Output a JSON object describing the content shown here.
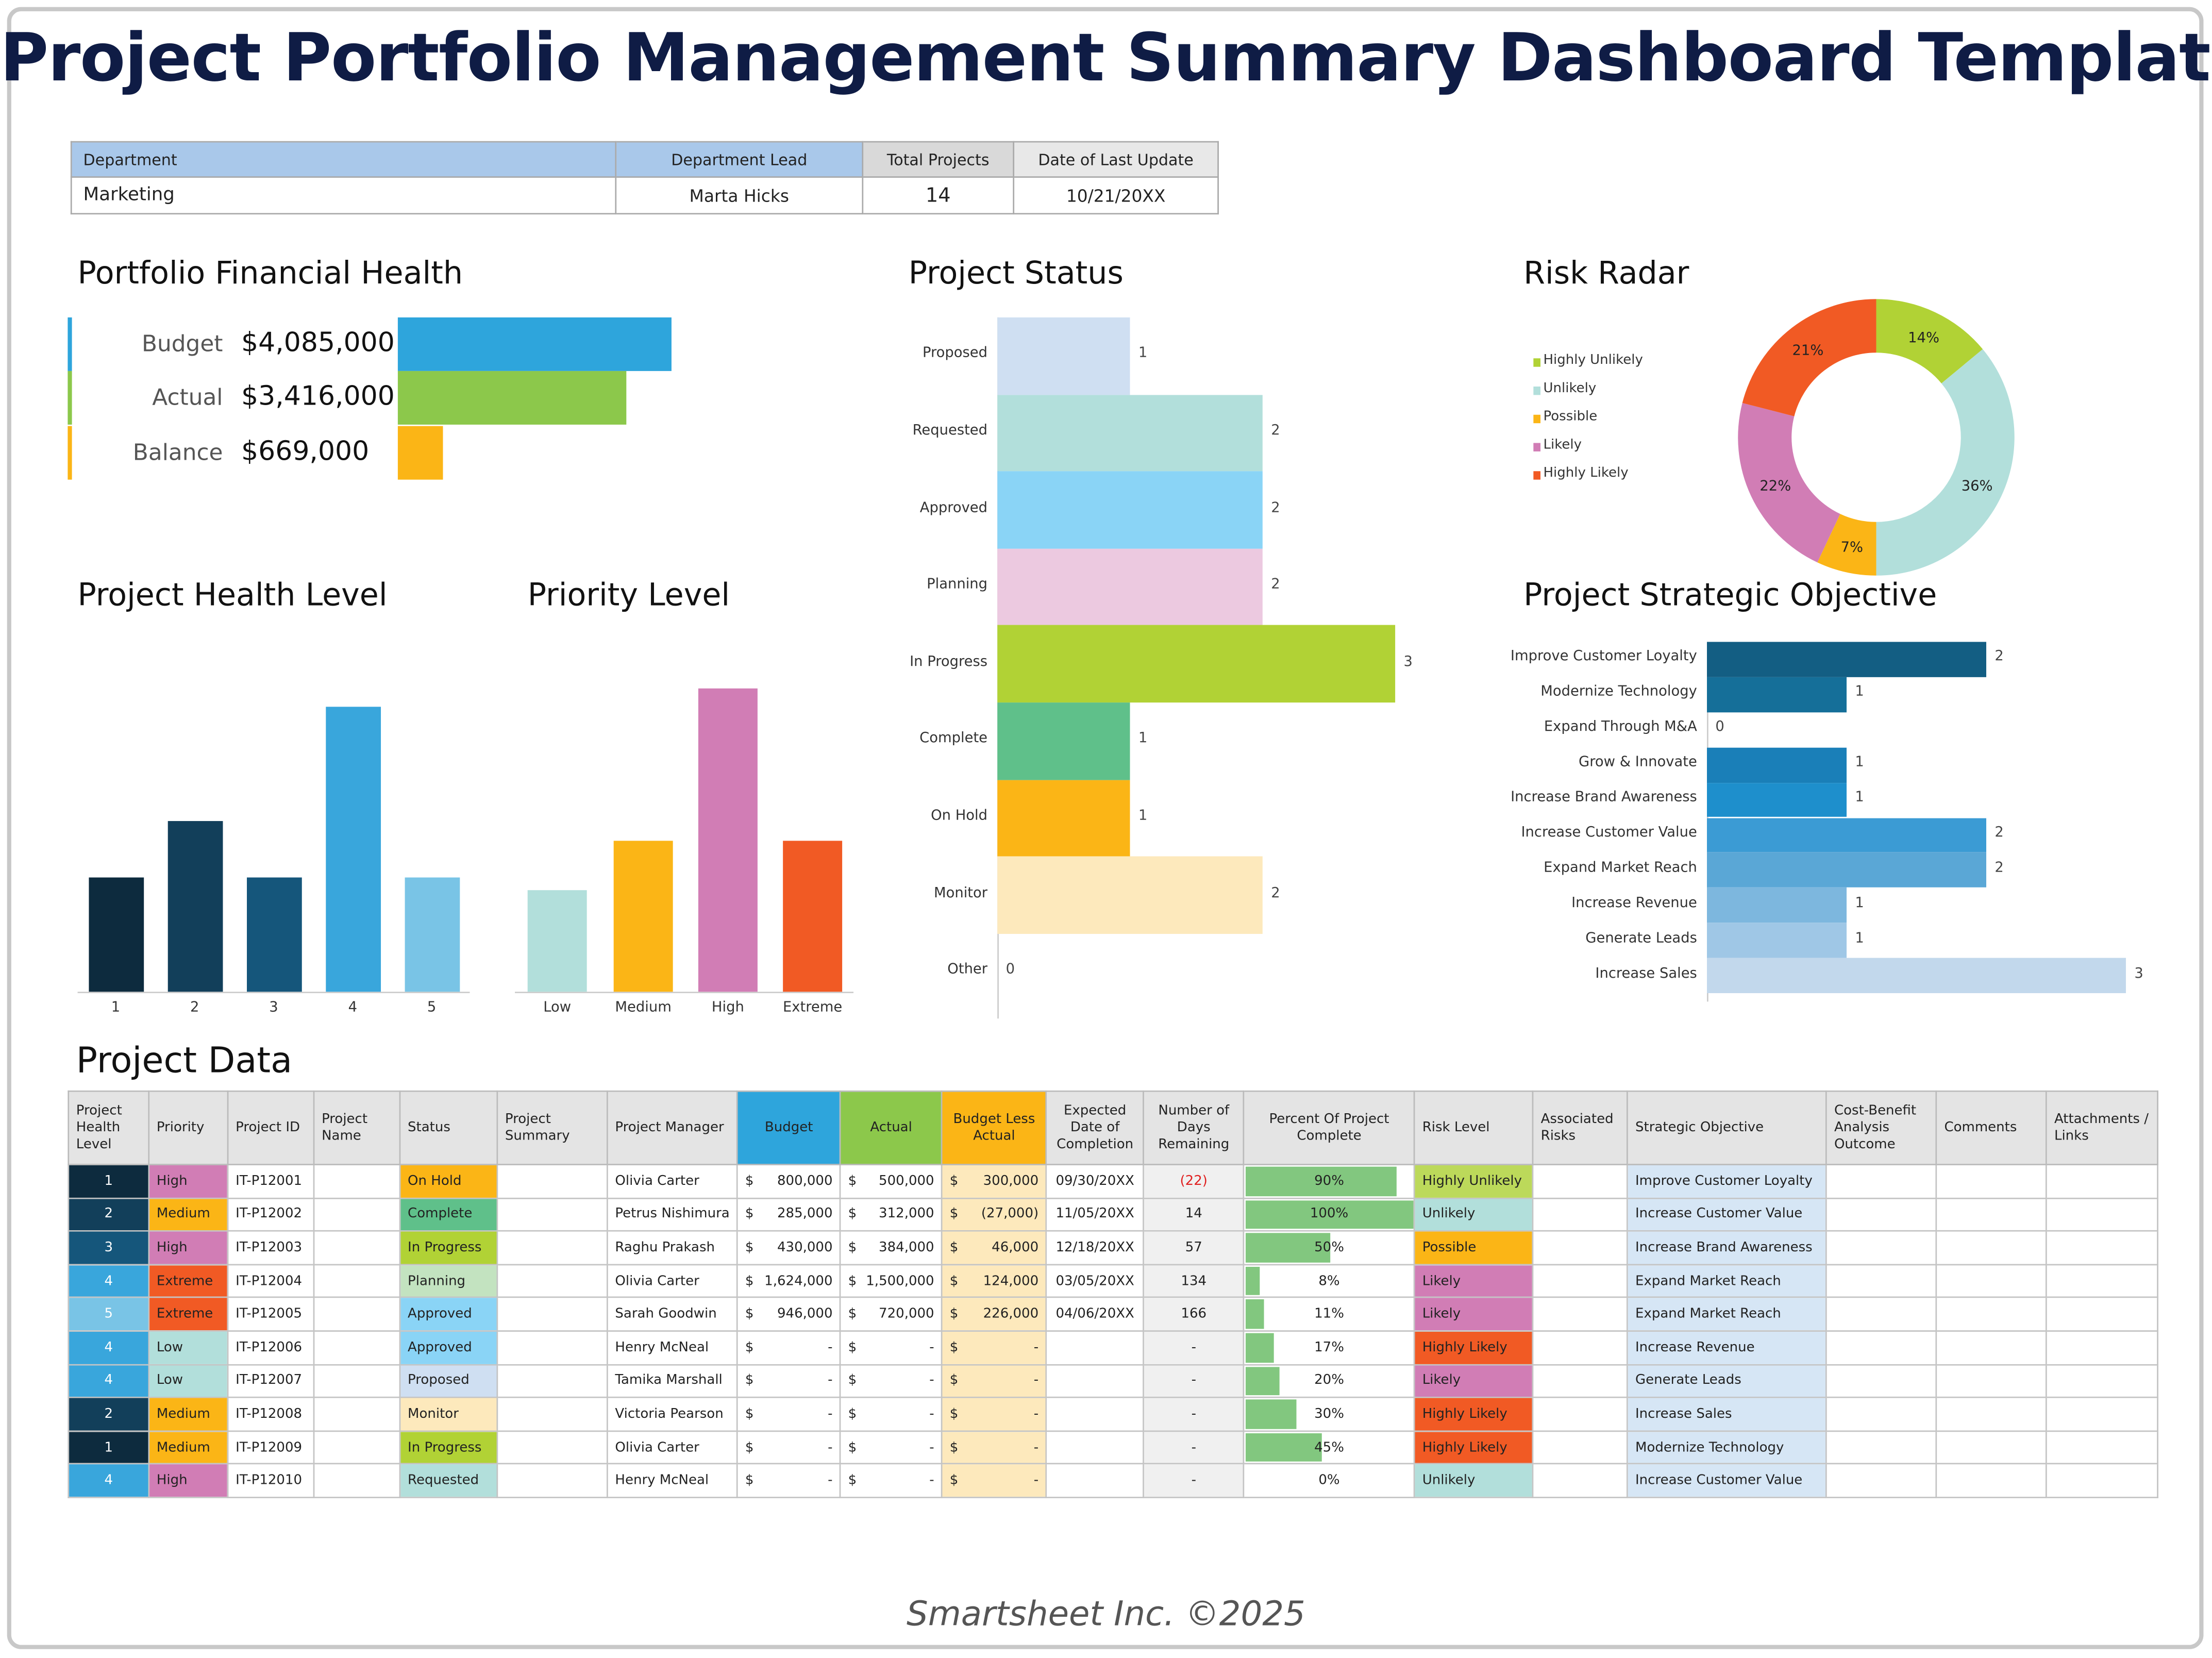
{
  "title": "Project Portfolio Management Summary Dashboard Template",
  "info": {
    "headers": [
      "Department",
      "Department Lead",
      "Total Projects",
      "Date of Last Update"
    ],
    "values": [
      "Marketing",
      "Marta Hicks",
      "14",
      "10/21/20XX"
    ]
  },
  "financial": {
    "title": "Portfolio Financial Health",
    "rows": [
      {
        "label": "Budget",
        "display": "$4,085,000",
        "value": 4085000,
        "color": "#2ea5dc"
      },
      {
        "label": "Actual",
        "display": "$3,416,000",
        "value": 3416000,
        "color": "#8cc84b"
      },
      {
        "label": "Balance",
        "display": "$669,000",
        "value": 669000,
        "color": "#fbb516"
      }
    ]
  },
  "chart_data": [
    {
      "id": "health",
      "type": "bar",
      "title": "Project Health Level",
      "categories": [
        "1",
        "2",
        "3",
        "4",
        "5"
      ],
      "values": [
        2,
        3,
        2,
        5,
        2
      ],
      "colors": [
        "#0d2b3e",
        "#123f5a",
        "#15567b",
        "#39a6dc",
        "#79c4e6"
      ]
    },
    {
      "id": "priority",
      "type": "bar",
      "title": "Priority Level",
      "categories": [
        "Low",
        "Medium",
        "High",
        "Extreme"
      ],
      "values": [
        2,
        3,
        6,
        3
      ],
      "colors": [
        "#b2dfdb",
        "#fbb516",
        "#d17db5",
        "#f15a24"
      ]
    },
    {
      "id": "status",
      "type": "bar",
      "orientation": "horizontal",
      "title": "Project Status",
      "categories": [
        "Proposed",
        "Requested",
        "Approved",
        "Planning",
        "In Progress",
        "Complete",
        "On Hold",
        "Monitor",
        "Other"
      ],
      "values": [
        1,
        2,
        2,
        2,
        3,
        1,
        1,
        2,
        0
      ],
      "colors": [
        "#cfdff2",
        "#b2dfdb",
        "#8ad4f6",
        "#ecc9e0",
        "#b1d235",
        "#5fc08a",
        "#fbb516",
        "#fde9bc",
        "#eeeeee"
      ]
    },
    {
      "id": "risk",
      "type": "pie",
      "donut": true,
      "title": "Risk Radar",
      "legend": "left",
      "categories": [
        "Highly Unlikely",
        "Unlikely",
        "Possible",
        "Likely",
        "Highly Likely"
      ],
      "values": [
        14,
        36,
        7,
        22,
        21
      ],
      "labels": [
        "14%",
        "36%",
        "7%",
        "22%",
        "21%"
      ],
      "colors": [
        "#b1d235",
        "#b2dfdb",
        "#fbb516",
        "#d17db5",
        "#f15a24"
      ]
    },
    {
      "id": "objective",
      "type": "bar",
      "orientation": "horizontal",
      "title": "Project Strategic Objective",
      "categories": [
        "Improve Customer Loyalty",
        "Modernize Technology",
        "Expand Through M&A",
        "Grow & Innovate",
        "Increase Brand Awareness",
        "Increase Customer Value",
        "Expand Market Reach",
        "Increase Revenue",
        "Generate Leads",
        "Increase Sales"
      ],
      "values": [
        2,
        1,
        0,
        1,
        1,
        2,
        2,
        1,
        1,
        3
      ],
      "colors": [
        "#135e83",
        "#156f99",
        "#1776a8",
        "#1a7fb8",
        "#1e8fcc",
        "#3b9bd4",
        "#5aa7d6",
        "#7db7de",
        "#9fc7e6",
        "#c2d8ec"
      ]
    }
  ],
  "table": {
    "title": "Project Data",
    "headers": [
      "Project Health Level",
      "Priority",
      "Project ID",
      "Project Name",
      "Status",
      "Project Summary",
      "Project Manager",
      "Budget",
      "Actual",
      "Budget Less Actual",
      "Expected Date of Completion",
      "Number of Days Remaining",
      "Percent Of Project Complete",
      "Risk Level",
      "Associated Risks",
      "Strategic Objective",
      "Cost-Benefit Analysis Outcome",
      "Comments",
      "Attachments / Links"
    ],
    "rows": [
      [
        "1",
        "High",
        "IT-P12001",
        "",
        "On Hold",
        "",
        "Olivia Carter",
        "800,000",
        "500,000",
        "300,000",
        "09/30/20XX",
        "(22)",
        90,
        "Highly Unlikely",
        "",
        "Improve Customer Loyalty",
        "",
        "",
        ""
      ],
      [
        "2",
        "Medium",
        "IT-P12002",
        "",
        "Complete",
        "",
        "Petrus Nishimura",
        "285,000",
        "312,000",
        "(27,000)",
        "11/05/20XX",
        "14",
        100,
        "Unlikely",
        "",
        "Increase Customer Value",
        "",
        "",
        ""
      ],
      [
        "3",
        "High",
        "IT-P12003",
        "",
        "In Progress",
        "",
        "Raghu Prakash",
        "430,000",
        "384,000",
        "46,000",
        "12/18/20XX",
        "57",
        50,
        "Possible",
        "",
        "Increase Brand Awareness",
        "",
        "",
        ""
      ],
      [
        "4",
        "Extreme",
        "IT-P12004",
        "",
        "Planning",
        "",
        "Olivia Carter",
        "1,624,000",
        "1,500,000",
        "124,000",
        "03/05/20XX",
        "134",
        8,
        "Likely",
        "",
        "Expand Market Reach",
        "",
        "",
        ""
      ],
      [
        "5",
        "Extreme",
        "IT-P12005",
        "",
        "Approved",
        "",
        "Sarah Goodwin",
        "946,000",
        "720,000",
        "226,000",
        "04/06/20XX",
        "166",
        11,
        "Likely",
        "",
        "Expand Market Reach",
        "",
        "",
        ""
      ],
      [
        "4",
        "Low",
        "IT-P12006",
        "",
        "Approved",
        "",
        "Henry McNeal",
        "-",
        "-",
        "-",
        "",
        "-",
        17,
        "Highly Likely",
        "",
        "Increase Revenue",
        "",
        "",
        ""
      ],
      [
        "4",
        "Low",
        "IT-P12007",
        "",
        "Proposed",
        "",
        "Tamika Marshall",
        "-",
        "-",
        "-",
        "",
        "-",
        20,
        "Likely",
        "",
        "Generate Leads",
        "",
        "",
        ""
      ],
      [
        "2",
        "Medium",
        "IT-P12008",
        "",
        "Monitor",
        "",
        "Victoria Pearson",
        "-",
        "-",
        "-",
        "",
        "-",
        30,
        "Highly Likely",
        "",
        "Increase Sales",
        "",
        "",
        ""
      ],
      [
        "1",
        "Medium",
        "IT-P12009",
        "",
        "In Progress",
        "",
        "Olivia Carter",
        "-",
        "-",
        "-",
        "",
        "-",
        45,
        "Highly Likely",
        "",
        "Modernize Technology",
        "",
        "",
        ""
      ],
      [
        "4",
        "High",
        "IT-P12010",
        "",
        "Requested",
        "",
        "Henry McNeal",
        "-",
        "-",
        "-",
        "",
        "-",
        0,
        "Unlikely",
        "",
        "Increase Customer Value",
        "",
        "",
        ""
      ]
    ]
  },
  "currency_symbol": "$",
  "colors": {
    "health": {
      "1": "#0d2b3e",
      "2": "#123f5a",
      "3": "#15567b",
      "4": "#39a6dc",
      "5": "#79c4e6"
    },
    "priority": {
      "High": "#d17db5",
      "Medium": "#fbb516",
      "Extreme": "#f15a24",
      "Low": "#b2dfdb"
    },
    "status": {
      "On Hold": "#fbb516",
      "Complete": "#5fc08a",
      "In Progress": "#b1d235",
      "Planning": "#c3e3c0",
      "Approved": "#8ad4f6",
      "Proposed": "#cfdff2",
      "Monitor": "#fde9bc",
      "Requested": "#b2dfdb"
    },
    "risk": {
      "Highly Unlikely": "#bcd95a",
      "Unlikely": "#b2dfdb",
      "Possible": "#fbb516",
      "Likely": "#d17db5",
      "Highly Likely": "#f15a24"
    },
    "negative": "#e02020"
  },
  "footer": "Smartsheet Inc. ©2025"
}
